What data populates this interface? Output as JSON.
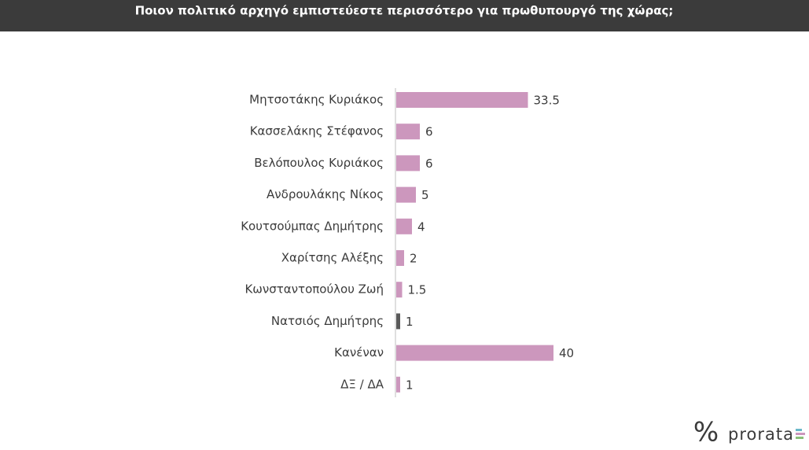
{
  "chart_data": {
    "type": "bar",
    "orientation": "horizontal",
    "title": "Ποιον πολιτικό αρχηγό εμπιστεύεστε περισσότερο για πρωθυπουργό της χώρας;",
    "categories": [
      "Μητσοτάκης Κυριάκος",
      "Κασσελάκης Στέφανος",
      "Βελόπουλος Κυριάκος",
      "Ανδρουλάκης Νίκος",
      "Κουτσούμπας Δημήτρης",
      "Χαρίτσης Αλέξης",
      "Κωνσταντοπούλου Ζωή",
      "Νατσιός Δημήτρης",
      "Κανέναν",
      "ΔΞ / ΔΑ"
    ],
    "values": [
      33.5,
      6,
      6,
      5,
      4,
      2,
      1.5,
      1,
      40,
      1
    ],
    "colors": [
      "#cc97bd",
      "#cc97bd",
      "#cc97bd",
      "#cc97bd",
      "#cc97bd",
      "#cc97bd",
      "#cc97bd",
      "#595959",
      "#cc97bd",
      "#cc97bd"
    ],
    "source": "prorata"
  }
}
